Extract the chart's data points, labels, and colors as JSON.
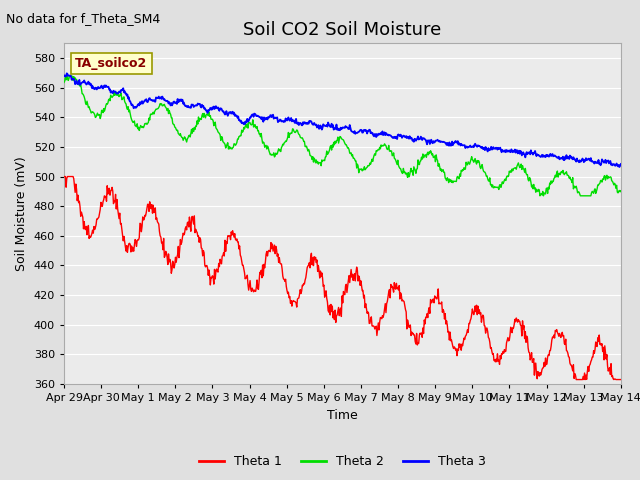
{
  "title": "Soil CO2 Soil Moisture",
  "no_data_label": "No data for f_Theta_SM4",
  "annotation_label": "TA_soilco2",
  "xlabel": "Time",
  "ylabel": "Soil Moisture (mV)",
  "ylim": [
    360,
    590
  ],
  "yticks": [
    360,
    380,
    400,
    420,
    440,
    460,
    480,
    500,
    520,
    540,
    560,
    580
  ],
  "x_labels": [
    "Apr 29",
    "Apr 30",
    "May 1",
    "May 2",
    "May 3",
    "May 4",
    "May 5",
    "May 6",
    "May 7",
    "May 8",
    "May 9",
    "May 10",
    "May 11",
    "May 12",
    "May 13",
    "May 14"
  ],
  "x_ticks": [
    0,
    1,
    2,
    3,
    4,
    5,
    6,
    7,
    8,
    9,
    10,
    11,
    12,
    13,
    14,
    15
  ],
  "xlim": [
    0,
    15
  ],
  "bg_color": "#e0e0e0",
  "plot_bg_color": "#ebebeb",
  "grid_color": "#ffffff",
  "line_colors": {
    "theta1": "#ff0000",
    "theta2": "#00dd00",
    "theta3": "#0000ff"
  },
  "legend_entries": [
    "Theta 1",
    "Theta 2",
    "Theta 3"
  ],
  "title_fontsize": 13,
  "label_fontsize": 9,
  "tick_fontsize": 8,
  "annotation_fontsize": 9,
  "annotation_color": "#880000"
}
